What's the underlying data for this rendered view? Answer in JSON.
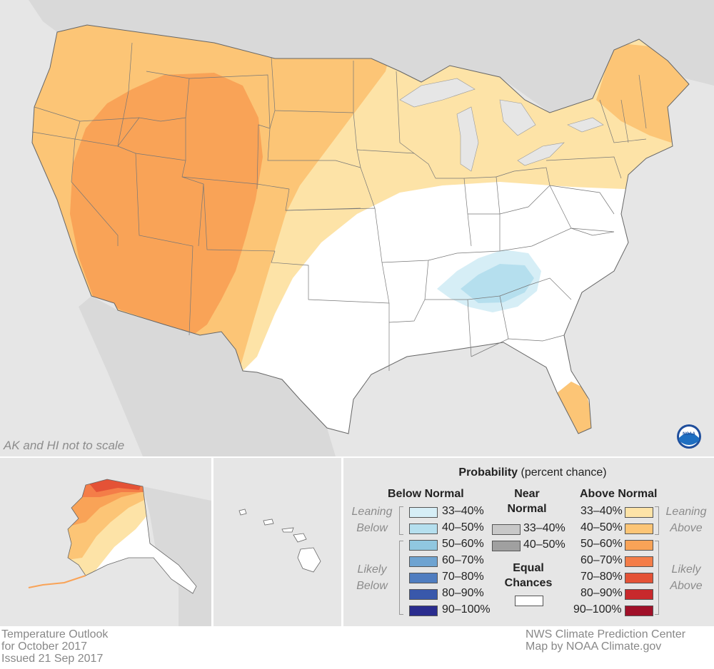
{
  "map_note": "AK and HI not to scale",
  "legend": {
    "title_bold": "Probability",
    "title_rest": "(percent chance)",
    "below_header": "Below Normal",
    "near_header_line1": "Near",
    "near_header_line2": "Normal",
    "above_header": "Above Normal",
    "equal_line1": "Equal",
    "equal_line2": "Chances",
    "leaning_below_1": "Leaning",
    "leaning_below_2": "Below",
    "likely_below_1": "Likely",
    "likely_below_2": "Below",
    "leaning_above_1": "Leaning",
    "leaning_above_2": "Above",
    "likely_above_1": "Likely",
    "likely_above_2": "Above",
    "below": [
      {
        "label": "33–40%",
        "color": "#d6eef6"
      },
      {
        "label": "40–50%",
        "color": "#b5dfee"
      },
      {
        "label": "50–60%",
        "color": "#90c7e0"
      },
      {
        "label": "60–70%",
        "color": "#6ea3d1"
      },
      {
        "label": "70–80%",
        "color": "#4f7dc0"
      },
      {
        "label": "80–90%",
        "color": "#3958ab"
      },
      {
        "label": "90–100%",
        "color": "#2a2c8e"
      }
    ],
    "near": [
      {
        "label": "33–40%",
        "color": "#c8c8c8"
      },
      {
        "label": "40–50%",
        "color": "#a0a0a0"
      }
    ],
    "above": [
      {
        "label": "33–40%",
        "color": "#fde3a7"
      },
      {
        "label": "40–50%",
        "color": "#fcc576"
      },
      {
        "label": "50–60%",
        "color": "#f9a357"
      },
      {
        "label": "60–70%",
        "color": "#f47d48"
      },
      {
        "label": "70–80%",
        "color": "#e45236"
      },
      {
        "label": "80–90%",
        "color": "#c8292c"
      },
      {
        "label": "90–100%",
        "color": "#a01028"
      }
    ]
  },
  "footer": {
    "line1": "Temperature Outlook",
    "line2": "for October 2017",
    "line3": "Issued 21 Sep 2017",
    "credit1": "NWS Climate Prediction Center",
    "credit2": "Map by NOAA Climate.gov"
  },
  "logo_text": "NOAA"
}
